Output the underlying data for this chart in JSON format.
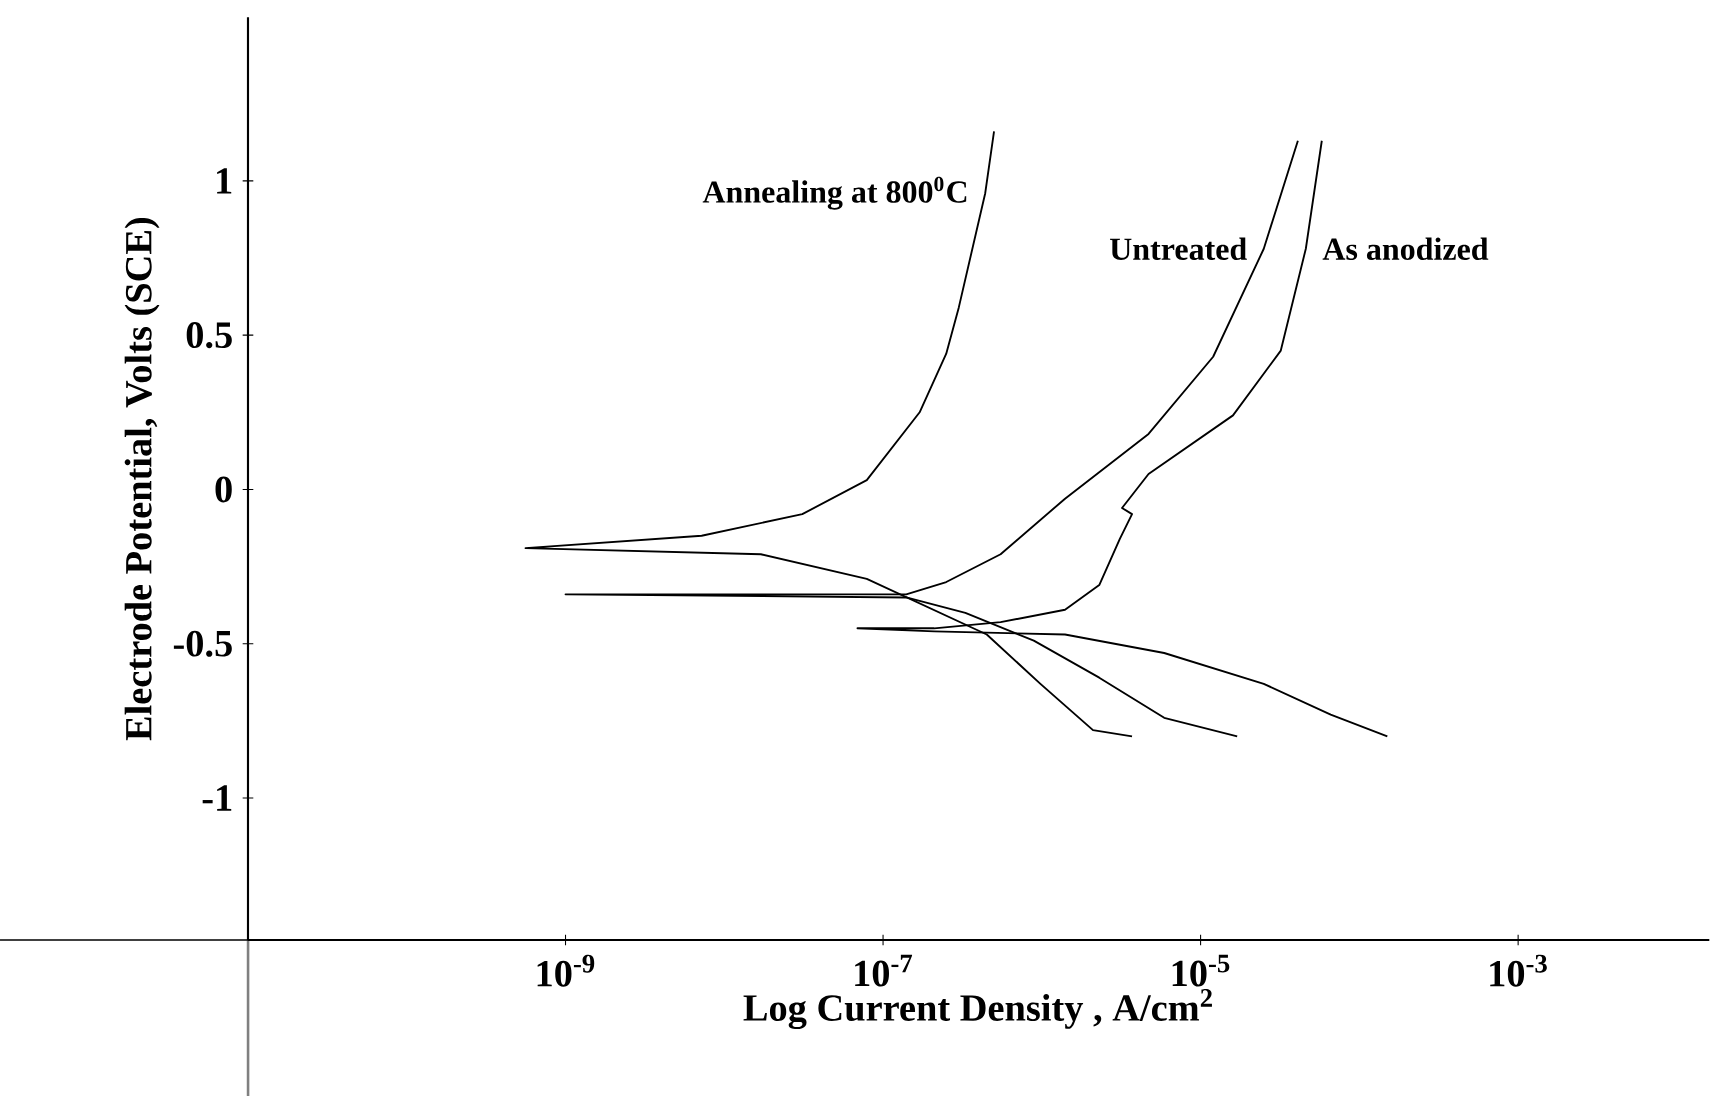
{
  "chart_data": {
    "type": "line",
    "xlabel": "Log Current Density , A/cm$^{2}$",
    "ylabel": "Electrode Potential, Volts (SCE)",
    "log": "x",
    "xlim": [
      1e-11,
      0.016
    ],
    "ylim": [
      -1.46,
      1.53
    ],
    "xticks": [
      {
        "value": 1e-09,
        "label": "10$^{-9}$"
      },
      {
        "value": 1e-07,
        "label": "10$^{-7}$"
      },
      {
        "value": 1e-05,
        "label": "10$^{-5}$"
      },
      {
        "value": 0.001,
        "label": "10$^{-3}$"
      }
    ],
    "yticks": [
      -1,
      -0.5,
      0,
      0.5,
      1
    ],
    "grid": false,
    "legend": false,
    "series": [
      {
        "name": "Annealing at 800$^{0}$C",
        "color": "#000000",
        "x": [
          5e-07,
          4.4e-07,
          3e-07,
          2.5e-07,
          1.7e-07,
          7.9e-08,
          3.1e-08,
          7.2e-09,
          5.6e-10,
          1.7e-08,
          7.9e-08,
          4.5e-07,
          9.8e-07,
          2.1e-06,
          3.7e-06
        ],
        "values": [
          1.16,
          0.96,
          0.59,
          0.44,
          0.25,
          0.03,
          -0.08,
          -0.15,
          -0.19,
          -0.21,
          -0.29,
          -0.47,
          -0.63,
          -0.78,
          -0.8
        ]
      },
      {
        "name": "Untreated",
        "color": "#000000",
        "x": [
          4.1e-05,
          2.5e-05,
          1.2e-05,
          4.7e-06,
          1.4e-06,
          5.5e-07,
          2.5e-07,
          1.4e-07,
          4.5e-09,
          1e-09,
          1.4e-07,
          3.3e-07,
          8.9e-07,
          2.3e-06,
          5.9e-06,
          1.7e-05
        ],
        "values": [
          1.13,
          0.78,
          0.43,
          0.18,
          -0.03,
          -0.21,
          -0.3,
          -0.34,
          -0.34,
          -0.34,
          -0.35,
          -0.4,
          -0.49,
          -0.61,
          -0.74,
          -0.8
        ]
      },
      {
        "name": "As anodized",
        "color": "#000000",
        "x": [
          5.8e-05,
          4.6e-05,
          3.2e-05,
          1.6e-05,
          4.7e-06,
          3.2e-06,
          3.7e-06,
          3.1e-06,
          2.3e-06,
          1.4e-06,
          5.5e-07,
          2.1e-07,
          6.9e-08,
          2.1e-07,
          1.4e-06,
          5.9e-06,
          2.5e-05,
          6.6e-05,
          0.00015
        ],
        "values": [
          1.13,
          0.78,
          0.45,
          0.24,
          0.05,
          -0.06,
          -0.08,
          -0.16,
          -0.31,
          -0.39,
          -0.43,
          -0.45,
          -0.45,
          -0.46,
          -0.47,
          -0.53,
          -0.63,
          -0.73,
          -0.8
        ]
      }
    ]
  }
}
